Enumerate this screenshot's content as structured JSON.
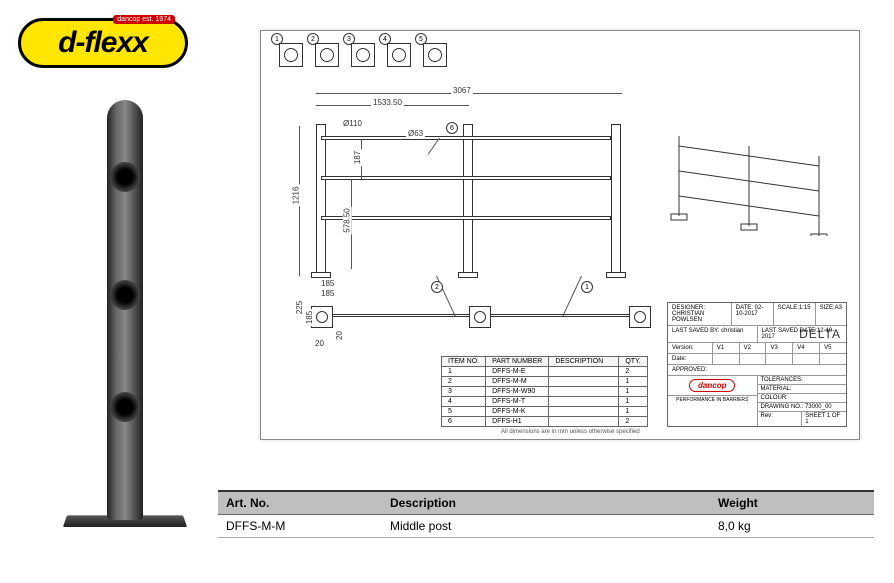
{
  "logo": {
    "text": "d-flexx",
    "badge": "dancop est. 1974"
  },
  "product_post": {
    "cylinder_gradient": [
      "#222222",
      "#666666",
      "#888888",
      "#555555",
      "#222222"
    ],
    "holes": [
      62,
      180,
      292
    ]
  },
  "drawing": {
    "title": "DELTA",
    "top_views": [
      "1",
      "2",
      "3",
      "4",
      "5"
    ],
    "dimensions": {
      "overall_width": "3067",
      "half_width": "1533.50",
      "post_dia": "Ø110",
      "small_dia": "Ø63",
      "height": "1216",
      "rail_h": "187",
      "rail_low": "578.50",
      "base_w": "185",
      "base_w2": "185",
      "plan_h": "225",
      "plan_h2": "185",
      "edge": "20",
      "edge2": "20"
    },
    "callouts": {
      "fe_left": "2",
      "fe_right": "1",
      "fe_small": "6"
    },
    "bom": {
      "headers": [
        "ITEM NO.",
        "PART NUMBER",
        "DESCRIPTION",
        "QTY."
      ],
      "rows": [
        [
          "1",
          "DFFS-M-E",
          "",
          "2"
        ],
        [
          "2",
          "DFFS-M-M",
          "",
          "1"
        ],
        [
          "3",
          "DFFS-M-W90",
          "",
          "1"
        ],
        [
          "4",
          "DFFS-M-T",
          "",
          "1"
        ],
        [
          "5",
          "DFFS-M-K",
          "",
          "1"
        ],
        [
          "6",
          "DFFS-H1",
          "",
          "2"
        ]
      ],
      "footnote": "All dimensions are in mm unless otherwise specified"
    },
    "title_block": {
      "designer_label": "DESIGNER:",
      "designer": "CHRISTIAN POWLSEN",
      "date_label": "DATE:",
      "date": "02-10-2017",
      "scale_label": "SCALE:",
      "scale": "1:15",
      "size_label": "SIZE:",
      "size": "A3",
      "saved_label": "LAST SAVED BY:",
      "saved_by": "christian",
      "saved_date_label": "LAST SAVED DATE:",
      "saved_date": "12-10-2017",
      "version_label": "Version:",
      "versions": [
        "V1",
        "V2",
        "V3",
        "V4",
        "V5"
      ],
      "date2_label": "Date:",
      "approved_label": "APPROVED:",
      "logo": "dancop",
      "logo_sub": "PERFORMANCE IN BARRIERS",
      "tolerances": "TOLERANCES:",
      "material": "MATERIAL:",
      "colour": "COLOUR:",
      "drawing_no": "DRAWING NO.: 73000_00",
      "rev": "Rev:",
      "sheet": "SHEET 1 OF 1"
    }
  },
  "spec_table": {
    "headers": [
      "Art. No.",
      "Description",
      "Weight"
    ],
    "rows": [
      [
        "DFFS-M-M",
        "Middle post",
        "8,0 kg"
      ]
    ],
    "header_bg": "#bfbfbf"
  }
}
